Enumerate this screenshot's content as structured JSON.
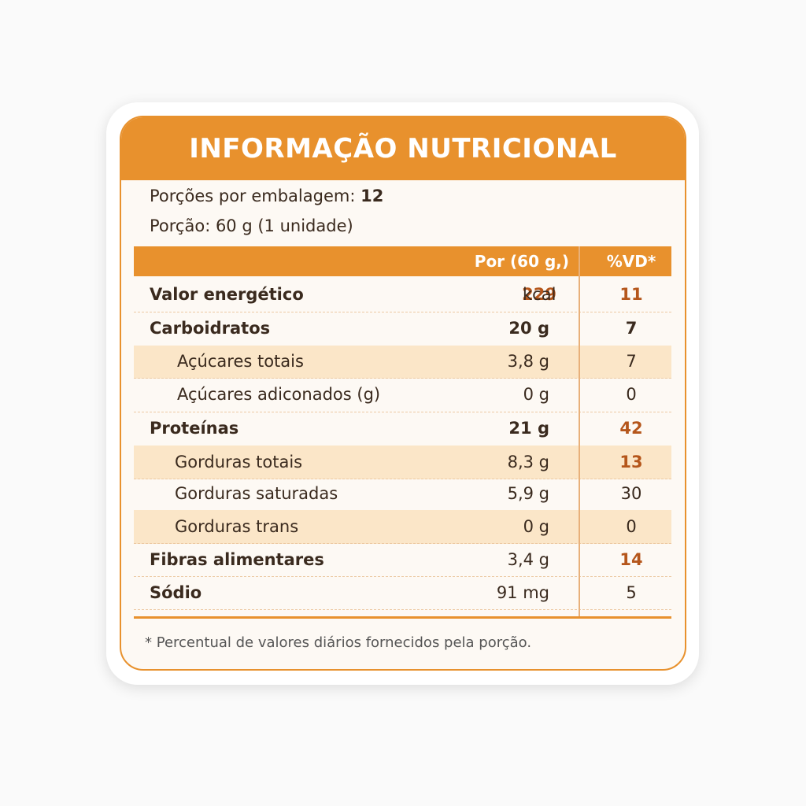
{
  "header": {
    "title": "INFORMAÇÃO NUTRICIONAL"
  },
  "servings": {
    "label": "Porções por embalagem:",
    "value": "12"
  },
  "portion": "Porção: 60 g (1 unidade)",
  "table": {
    "columns": [
      "Por (60 g,)",
      "%VD*"
    ],
    "rows": [
      [
        "Valor energético",
        "229",
        "kcal",
        "11"
      ],
      [
        "Carboidratos",
        "20 g",
        "",
        "7"
      ],
      [
        "Açúcares totais",
        "3,8 g",
        "",
        "7"
      ],
      [
        "Açúcares adiconados (g)",
        "0 g",
        "",
        "0"
      ],
      [
        "Proteínas",
        "21 g",
        "",
        "42"
      ],
      [
        "Gorduras totais",
        "8,3 g",
        "",
        "13"
      ],
      [
        "Gorduras saturadas",
        "5,9 g",
        "",
        "30"
      ],
      [
        "Gorduras trans",
        "0 g",
        "",
        "0"
      ],
      [
        "Fibras alimentares",
        "3,4 g",
        "",
        "14"
      ],
      [
        "Sódio",
        "91 mg",
        "",
        "5"
      ]
    ]
  },
  "footnote": {
    "mark": "*",
    "text": "Percentual de valores diários fornecidos pela porção."
  }
}
